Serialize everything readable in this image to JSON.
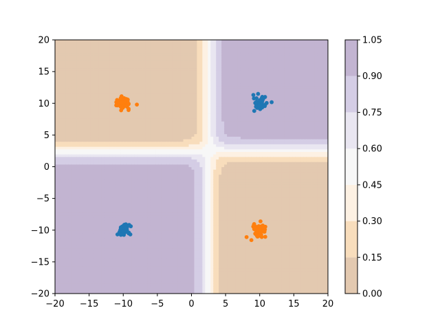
{
  "chart_data": {
    "type": "contourf+scatter",
    "xlim": [
      -20,
      20
    ],
    "ylim": [
      -20,
      20
    ],
    "xticks": [
      -20,
      -15,
      -10,
      -5,
      0,
      5,
      10,
      15,
      20
    ],
    "yticks": [
      -20,
      -15,
      -10,
      -5,
      0,
      5,
      10,
      15,
      20
    ],
    "xtick_labels": [
      "−20",
      "−15",
      "−10",
      "−5",
      "0",
      "5",
      "10",
      "15",
      "20"
    ],
    "ytick_labels": [
      "−20",
      "−15",
      "−10",
      "−5",
      "0",
      "5",
      "10",
      "15",
      "20"
    ],
    "grid": false,
    "contour_levels": [
      0.0,
      0.15,
      0.3,
      0.45,
      0.6,
      0.75,
      0.9,
      1.05
    ],
    "colorbar_tick_labels": [
      "0.00",
      "0.15",
      "0.30",
      "0.45",
      "0.60",
      "0.75",
      "0.90",
      "1.05"
    ],
    "contour_colors": [
      "#e3c9b0",
      "#f8ddbc",
      "#fdf1e3",
      "#f7f7f7",
      "#e9e6f1",
      "#d4cde5",
      "#c2b4d1"
    ],
    "clusters": [
      {
        "color": "#1f77b4",
        "center": [
          10,
          10
        ],
        "spread": 0.45,
        "n": 70
      },
      {
        "color": "#1f77b4",
        "center": [
          -10,
          -10
        ],
        "spread": 0.45,
        "n": 70
      },
      {
        "color": "#ff7f0e",
        "center": [
          -10,
          10
        ],
        "spread": 0.45,
        "n": 70
      },
      {
        "color": "#ff7f0e",
        "center": [
          10,
          -10
        ],
        "spread": 0.45,
        "n": 70
      }
    ],
    "outliers": [
      {
        "color": "#ff7f0e",
        "x": -8,
        "y": 9.8
      },
      {
        "color": "#1f77b4",
        "x": 9.2,
        "y": 8.8
      }
    ]
  }
}
